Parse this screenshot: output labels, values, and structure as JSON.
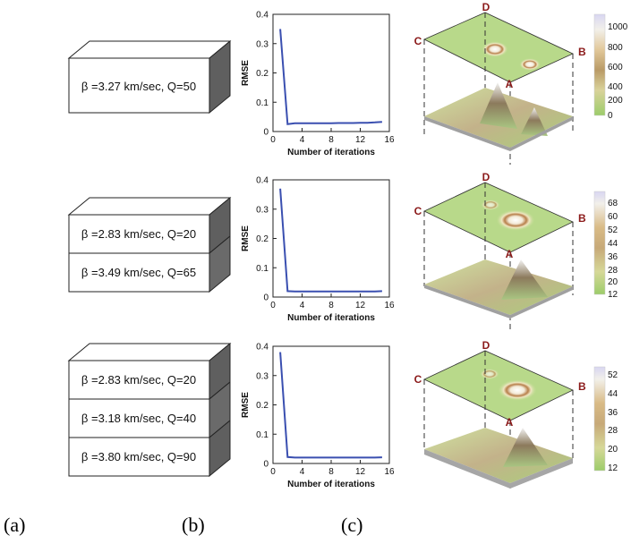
{
  "panel_labels": [
    "(a)",
    "(b)",
    "(c)"
  ],
  "models": [
    {
      "layers": [
        "β =3.27 km/sec, Q=50"
      ]
    },
    {
      "layers": [
        "β =2.83 km/sec, Q=20",
        "β =3.49 km/sec, Q=65"
      ]
    },
    {
      "layers": [
        "β =2.83 km/sec, Q=20",
        "β =3.18 km/sec, Q=40",
        "β =3.80 km/sec, Q=90"
      ]
    }
  ],
  "surface_maps": [
    {
      "corner_labels": {
        "a": "A",
        "b": "B",
        "c": "C",
        "d": "D"
      },
      "colorbar_ticks": [
        "1000",
        "800",
        "600",
        "400",
        "200",
        "0"
      ]
    },
    {
      "corner_labels": {
        "a": "A",
        "b": "B",
        "c": "C",
        "d": "D"
      },
      "colorbar_ticks": [
        "68",
        "60",
        "52",
        "44",
        "36",
        "28",
        "20",
        "12"
      ]
    },
    {
      "corner_labels": {
        "a": "A",
        "b": "B",
        "c": "C",
        "d": "D"
      },
      "colorbar_ticks": [
        "52",
        "44",
        "36",
        "28",
        "20",
        "12"
      ]
    }
  ],
  "colors": {
    "line": "#3a4fb0",
    "map_green": "#b8d98a",
    "colorbar_top": "#e6e4f6",
    "colorbar_bottom": "#9ccc6a"
  },
  "chart_data": [
    {
      "type": "line",
      "xlabel": "Number of iterations",
      "ylabel": "RMSE",
      "xlim": [
        0,
        16
      ],
      "ylim": [
        0,
        0.4
      ],
      "xticks": [
        0,
        4,
        8,
        12,
        16
      ],
      "yticks": [
        0,
        0.1,
        0.2,
        0.3,
        0.4
      ],
      "x": [
        1,
        2,
        3,
        4,
        5,
        6,
        7,
        8,
        9,
        10,
        11,
        12,
        13,
        14,
        15
      ],
      "series": [
        {
          "values": [
            0.35,
            0.025,
            0.028,
            0.028,
            0.028,
            0.028,
            0.028,
            0.028,
            0.029,
            0.029,
            0.029,
            0.03,
            0.03,
            0.031,
            0.033
          ]
        }
      ]
    },
    {
      "type": "line",
      "xlabel": "Number of iterations",
      "ylabel": "RMSE",
      "xlim": [
        0,
        16
      ],
      "ylim": [
        0,
        0.4
      ],
      "xticks": [
        0,
        4,
        8,
        12,
        16
      ],
      "yticks": [
        0,
        0.1,
        0.2,
        0.3,
        0.4
      ],
      "x": [
        1,
        2,
        3,
        4,
        5,
        6,
        7,
        8,
        9,
        10,
        11,
        12,
        13,
        14,
        15
      ],
      "series": [
        {
          "values": [
            0.37,
            0.02,
            0.019,
            0.019,
            0.019,
            0.019,
            0.019,
            0.019,
            0.019,
            0.019,
            0.019,
            0.019,
            0.019,
            0.019,
            0.02
          ]
        }
      ]
    },
    {
      "type": "line",
      "xlabel": "Number of iterations",
      "ylabel": "RMSE",
      "xlim": [
        0,
        16
      ],
      "ylim": [
        0,
        0.4
      ],
      "xticks": [
        0,
        4,
        8,
        12,
        16
      ],
      "yticks": [
        0,
        0.1,
        0.2,
        0.3,
        0.4
      ],
      "x": [
        1,
        2,
        3,
        4,
        5,
        6,
        7,
        8,
        9,
        10,
        11,
        12,
        13,
        14,
        15
      ],
      "series": [
        {
          "values": [
            0.38,
            0.022,
            0.02,
            0.02,
            0.02,
            0.02,
            0.02,
            0.02,
            0.02,
            0.02,
            0.02,
            0.02,
            0.02,
            0.02,
            0.021
          ]
        }
      ]
    }
  ]
}
